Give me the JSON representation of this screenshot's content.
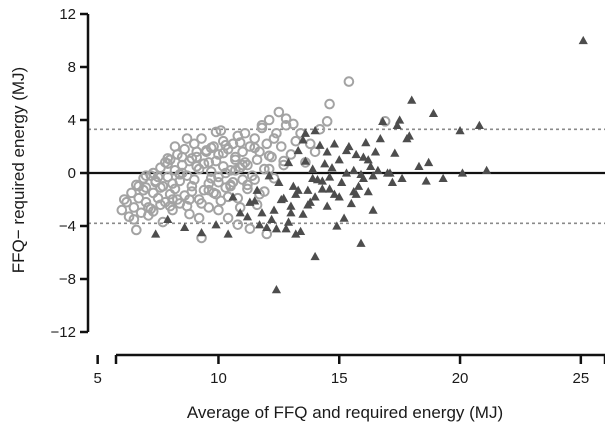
{
  "chart_data": {
    "type": "scatter",
    "title": "",
    "xlabel": "Average of FFQ and required energy (MJ)",
    "ylabel": "FFQ− required energy (MJ)",
    "xlim": [
      4.6,
      26
    ],
    "ylim": [
      -12,
      12
    ],
    "xticks": [
      5,
      10,
      15,
      20,
      25
    ],
    "yticks": [
      12,
      8,
      4,
      0,
      -4,
      -8,
      -12
    ],
    "x_tick_labels": [
      "5",
      "10",
      "15",
      "20",
      "25"
    ],
    "y_tick_labels": [
      "12",
      "8",
      "4",
      "0",
      "−4",
      "−8",
      "−12"
    ],
    "grid": false,
    "reference_lines": [
      {
        "y": 0,
        "style": "solid"
      },
      {
        "y": 3.3,
        "style": "dashed"
      },
      {
        "y": -3.8,
        "style": "dashed"
      }
    ],
    "colors": {
      "circles": "#a3a3a3",
      "triangles": "#4d4d4d",
      "zero_line": "#111111",
      "limit_lines": "#8a8a8a"
    },
    "series": [
      {
        "marker": "open-circle",
        "x": [
          6.0,
          6.2,
          6.3,
          6.4,
          6.5,
          6.6,
          6.7,
          6.8,
          6.9,
          7.0,
          7.0,
          7.1,
          7.2,
          7.3,
          7.3,
          7.4,
          7.5,
          7.6,
          7.6,
          7.7,
          7.8,
          7.8,
          7.9,
          8.0,
          8.0,
          8.1,
          8.2,
          8.2,
          8.3,
          8.4,
          8.4,
          8.5,
          8.6,
          8.6,
          8.7,
          8.8,
          8.8,
          8.9,
          9.0,
          9.0,
          9.1,
          9.2,
          9.2,
          9.3,
          9.4,
          9.4,
          9.5,
          9.6,
          9.6,
          9.7,
          9.8,
          9.8,
          9.9,
          10.0,
          10.0,
          10.1,
          10.2,
          10.2,
          10.3,
          10.4,
          10.4,
          10.5,
          10.6,
          10.6,
          10.7,
          10.8,
          10.8,
          10.9,
          11.0,
          11.0,
          11.1,
          11.2,
          11.2,
          11.3,
          11.4,
          11.5,
          11.6,
          11.7,
          11.8,
          11.9,
          12.0,
          12.1,
          12.2,
          12.3,
          12.4,
          12.5,
          12.6,
          12.7,
          12.8,
          13.0,
          13.2,
          13.4,
          13.6,
          13.8,
          14.0,
          14.2,
          14.6,
          15.4,
          6.1,
          6.5,
          6.9,
          7.2,
          7.5,
          7.7,
          7.9,
          8.1,
          8.3,
          8.5,
          8.7,
          8.9,
          9.1,
          9.3,
          9.5,
          9.7,
          9.9,
          10.1,
          10.3,
          10.5,
          10.7,
          10.9,
          11.1,
          11.3,
          11.5,
          11.7,
          11.9,
          12.1,
          12.3,
          7.1,
          7.6,
          8.0,
          8.4,
          8.8,
          9.2,
          9.6,
          10.0,
          10.4,
          10.8,
          11.2,
          11.6,
          12.0,
          6.7,
          7.3,
          7.9,
          8.5,
          9.1,
          9.7,
          10.3,
          10.9,
          11.5,
          12.1,
          12.7,
          8.2,
          8.9,
          9.6,
          10.2,
          10.7,
          11.0,
          10.5,
          9.3,
          8.1,
          7.4,
          6.6,
          8.7,
          9.9,
          11.8,
          13.1,
          14.5,
          16.9,
          12.8,
          7.0,
          10.0
        ],
        "y": [
          -2.8,
          -2.2,
          -3.3,
          -1.5,
          -2.6,
          -0.9,
          -1.9,
          -3.0,
          -0.4,
          -2.2,
          -1.1,
          -2.6,
          -0.2,
          -1.5,
          -2.9,
          -0.7,
          -1.9,
          0.4,
          -2.4,
          -1.0,
          0.8,
          -2.2,
          -0.3,
          -1.6,
          1.0,
          -2.8,
          0.2,
          -1.2,
          1.4,
          -0.6,
          -2.3,
          0.6,
          -1.7,
          1.8,
          -0.2,
          -3.1,
          0.9,
          -1.0,
          2.2,
          -0.5,
          1.2,
          -2.0,
          0.3,
          2.6,
          -1.3,
          0.7,
          1.6,
          -0.8,
          -2.6,
          0.1,
          2.0,
          -1.5,
          0.9,
          1.4,
          -0.3,
          -2.1,
          2.4,
          0.5,
          -1.1,
          1.8,
          -3.4,
          0.2,
          2.2,
          -0.7,
          1.0,
          -1.9,
          2.8,
          0.4,
          -0.5,
          1.6,
          3.0,
          -1.2,
          0.6,
          2.0,
          -0.2,
          2.6,
          1.0,
          -1.6,
          3.4,
          0.3,
          2.2,
          4.0,
          1.2,
          -0.4,
          3.0,
          4.6,
          2.0,
          0.6,
          3.6,
          1.4,
          2.4,
          3.0,
          0.8,
          2.2,
          1.6,
          3.3,
          5.2,
          6.9,
          -2.0,
          -3.5,
          -1.3,
          -2.7,
          -0.3,
          -3.7,
          1.1,
          -0.8,
          -2.0,
          0.0,
          2.6,
          -1.4,
          0.5,
          -2.3,
          1.7,
          -0.4,
          -1.6,
          3.2,
          0.0,
          -0.9,
          1.2,
          -2.6,
          0.8,
          -4.2,
          -0.5,
          1.6,
          -1.4,
          0.3,
          2.6,
          -3.2,
          -1.1,
          -2.5,
          -0.1,
          -2.0,
          -3.4,
          -1.3,
          -2.8,
          -1.8,
          -3.9,
          -0.9,
          -2.4,
          -4.6,
          -1.0,
          0.0,
          0.7,
          1.2,
          1.6,
          1.9,
          2.1,
          2.3,
          1.9,
          1.3,
          0.9,
          2.0,
          1.1,
          0.8,
          1.5,
          0.2,
          0.6,
          -1.0,
          -4.9,
          -2.0,
          -0.6,
          -4.3,
          -2.5,
          3.1,
          3.6,
          3.7,
          3.9,
          3.9,
          4.1,
          -0.2,
          -0.7
        ]
      },
      {
        "marker": "filled-triangle",
        "x": [
          7.4,
          7.9,
          8.6,
          9.3,
          9.9,
          10.4,
          10.9,
          11.2,
          11.5,
          11.7,
          12.0,
          12.2,
          12.4,
          12.5,
          12.7,
          12.8,
          12.9,
          13.0,
          13.1,
          13.2,
          13.3,
          13.4,
          13.5,
          13.5,
          13.6,
          13.7,
          13.8,
          13.9,
          14.0,
          14.0,
          14.1,
          14.2,
          14.3,
          14.4,
          14.5,
          14.5,
          14.6,
          14.7,
          14.8,
          14.9,
          15.0,
          15.1,
          15.2,
          15.3,
          15.4,
          15.5,
          15.6,
          15.7,
          15.8,
          15.9,
          16.0,
          16.1,
          16.2,
          16.3,
          16.4,
          16.5,
          16.6,
          16.8,
          17.0,
          17.2,
          17.4,
          17.6,
          17.8,
          18.0,
          18.3,
          18.6,
          18.9,
          19.3,
          20.0,
          20.1,
          20.8,
          21.1,
          25.1,
          12.3,
          13.0,
          13.7,
          14.3,
          15.0,
          15.7,
          16.4,
          17.1,
          17.9,
          18.7,
          11.6,
          12.1,
          12.6,
          13.3,
          13.9,
          14.6,
          15.3,
          16.0,
          16.7,
          17.5,
          14.0,
          15.6,
          13.2,
          12.4,
          11.8,
          11.3,
          10.6,
          16.2,
          17.3,
          12.9,
          14.8,
          13.6,
          15.9
        ],
        "y": [
          -4.6,
          -3.5,
          -4.1,
          -4.5,
          -3.9,
          -4.6,
          -3.0,
          -3.3,
          -2.1,
          -3.9,
          -4.1,
          -3.5,
          -8.8,
          -0.7,
          -1.9,
          -4.2,
          0.8,
          -2.5,
          -1.0,
          -1.6,
          1.7,
          -4.4,
          2.5,
          -3.1,
          0.9,
          -1.3,
          -2.2,
          0.3,
          3.2,
          -1.8,
          -0.5,
          2.1,
          -1.2,
          0.7,
          -2.5,
          1.6,
          -0.3,
          0.4,
          -1.6,
          -4.0,
          1.0,
          -0.7,
          -3.4,
          0.0,
          2.0,
          -2.3,
          0.2,
          1.4,
          -1.0,
          -5.3,
          -0.4,
          2.3,
          -1.4,
          0.5,
          -0.2,
          1.6,
          0.2,
          3.9,
          0.0,
          -0.7,
          3.6,
          -0.4,
          2.6,
          5.5,
          0.5,
          -0.6,
          4.5,
          -0.4,
          3.2,
          0.0,
          3.6,
          0.2,
          10.0,
          -2.8,
          -3.0,
          -2.4,
          -0.6,
          -1.8,
          -1.6,
          -2.8,
          0.0,
          2.8,
          0.8,
          -1.3,
          -0.2,
          -2.0,
          -1.3,
          -0.4,
          -1.2,
          1.7,
          1.2,
          2.6,
          4.0,
          -6.3,
          -1.4,
          -4.6,
          -4.2,
          -3.0,
          -2.2,
          -1.8,
          1.0,
          1.5,
          -3.7,
          2.2,
          3.0,
          -0.1
        ]
      }
    ]
  }
}
